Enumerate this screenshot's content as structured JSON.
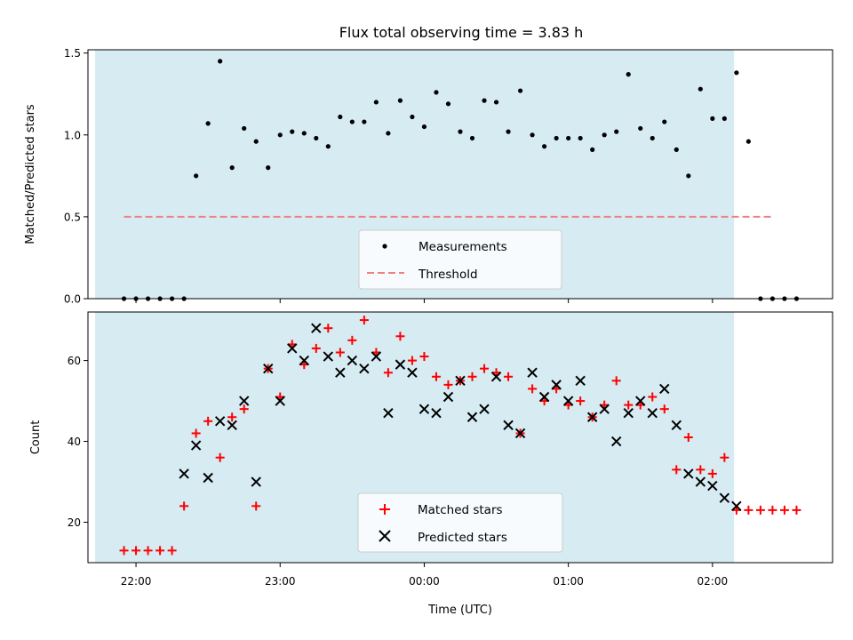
{
  "chart_data": [
    {
      "type": "scatter",
      "title": "Flux total observing time = 3.83 h",
      "ylabel": "Matched/Predicted stars",
      "ylim": [
        0,
        1.52
      ],
      "yticks": [
        "0.0",
        "0.5",
        "1.0",
        "1.5"
      ],
      "ytick_values": [
        0,
        0.5,
        1.0,
        1.5
      ],
      "shaded_span": [
        "21:43",
        "02:09"
      ],
      "shade_color": "#add8e6",
      "legend_position": "bottom-center",
      "series": [
        {
          "name": "Measurements",
          "kind": "scatter",
          "marker": "dot",
          "color": "#000000",
          "x": [
            "21:55",
            "22:00",
            "22:05",
            "22:10",
            "22:15",
            "22:20",
            "22:25",
            "22:30",
            "22:35",
            "22:40",
            "22:45",
            "22:50",
            "22:55",
            "23:00",
            "23:05",
            "23:10",
            "23:15",
            "23:20",
            "23:25",
            "23:30",
            "23:35",
            "23:40",
            "23:45",
            "23:50",
            "23:55",
            "00:00",
            "00:05",
            "00:10",
            "00:15",
            "00:20",
            "00:25",
            "00:30",
            "00:35",
            "00:40",
            "00:45",
            "00:50",
            "00:55",
            "01:00",
            "01:05",
            "01:10",
            "01:15",
            "01:20",
            "01:25",
            "01:30",
            "01:35",
            "01:40",
            "01:45",
            "01:50",
            "01:55",
            "02:00",
            "02:05",
            "02:10",
            "02:15",
            "02:20",
            "02:25",
            "02:30",
            "02:35"
          ],
          "y": [
            0,
            0,
            0,
            0,
            0,
            0,
            0.75,
            1.07,
            1.45,
            0.8,
            1.04,
            0.96,
            0.8,
            1.0,
            1.02,
            1.01,
            0.98,
            0.93,
            1.11,
            1.08,
            1.08,
            1.2,
            1.01,
            1.21,
            1.11,
            1.05,
            1.26,
            1.19,
            1.02,
            0.98,
            1.21,
            1.2,
            1.02,
            1.27,
            1.0,
            0.93,
            0.98,
            0.98,
            0.98,
            0.91,
            1.0,
            1.02,
            1.37,
            1.04,
            0.98,
            1.08,
            0.91,
            0.75,
            1.28,
            1.1,
            1.1,
            1.38,
            0.96,
            0,
            0,
            0,
            0
          ]
        },
        {
          "name": "Threshold",
          "kind": "line",
          "style": "dashed",
          "color": "#f08080",
          "x": [
            "21:55",
            "02:25"
          ],
          "y": [
            0.5,
            0.5
          ]
        }
      ]
    },
    {
      "type": "scatter",
      "xlabel": "Time (UTC)",
      "ylabel": "Count",
      "ylim": [
        10,
        72
      ],
      "yticks": [
        "20",
        "40",
        "60"
      ],
      "ytick_values": [
        20,
        40,
        60
      ],
      "xticks": [
        "22:00",
        "23:00",
        "00:00",
        "01:00",
        "02:00"
      ],
      "xlim": [
        "21:40",
        "02:50"
      ],
      "shaded_span": [
        "21:43",
        "02:09"
      ],
      "shade_color": "#add8e6",
      "legend_position": "bottom-center",
      "series": [
        {
          "name": "Matched stars",
          "kind": "scatter",
          "marker": "plus",
          "color": "#ff0000",
          "x": [
            "21:55",
            "22:00",
            "22:05",
            "22:10",
            "22:15",
            "22:20",
            "22:25",
            "22:30",
            "22:35",
            "22:40",
            "22:45",
            "22:50",
            "22:55",
            "23:00",
            "23:05",
            "23:10",
            "23:15",
            "23:20",
            "23:25",
            "23:30",
            "23:35",
            "23:40",
            "23:45",
            "23:50",
            "23:55",
            "00:00",
            "00:05",
            "00:10",
            "00:15",
            "00:20",
            "00:25",
            "00:30",
            "00:35",
            "00:40",
            "00:45",
            "00:50",
            "00:55",
            "01:00",
            "01:05",
            "01:10",
            "01:15",
            "01:20",
            "01:25",
            "01:30",
            "01:35",
            "01:40",
            "01:45",
            "01:50",
            "01:55",
            "02:00",
            "02:05",
            "02:10",
            "02:15",
            "02:20",
            "02:25",
            "02:30",
            "02:35"
          ],
          "y": [
            13,
            13,
            13,
            13,
            13,
            24,
            42,
            45,
            36,
            46,
            48,
            24,
            58,
            51,
            64,
            59,
            63,
            68,
            62,
            65,
            70,
            62,
            57,
            66,
            60,
            61,
            56,
            54,
            55,
            56,
            58,
            57,
            56,
            42,
            53,
            50,
            53,
            49,
            50,
            46,
            49,
            55,
            49,
            49,
            51,
            48,
            33,
            41,
            33,
            32,
            36,
            23,
            23,
            23,
            23,
            23,
            23
          ]
        },
        {
          "name": "Predicted stars",
          "kind": "scatter",
          "marker": "x",
          "color": "#000000",
          "x": [
            "22:20",
            "22:25",
            "22:30",
            "22:35",
            "22:40",
            "22:45",
            "22:50",
            "22:55",
            "23:00",
            "23:05",
            "23:10",
            "23:15",
            "23:20",
            "23:25",
            "23:30",
            "23:35",
            "23:40",
            "23:45",
            "23:50",
            "23:55",
            "00:00",
            "00:05",
            "00:10",
            "00:15",
            "00:20",
            "00:25",
            "00:30",
            "00:35",
            "00:40",
            "00:45",
            "00:50",
            "00:55",
            "01:00",
            "01:05",
            "01:10",
            "01:15",
            "01:20",
            "01:25",
            "01:30",
            "01:35",
            "01:40",
            "01:45",
            "01:50",
            "01:55",
            "02:00",
            "02:05",
            "02:10"
          ],
          "y": [
            32,
            39,
            31,
            45,
            44,
            50,
            30,
            58,
            50,
            63,
            60,
            68,
            61,
            57,
            60,
            58,
            61,
            47,
            59,
            57,
            48,
            47,
            51,
            55,
            46,
            48,
            56,
            44,
            42,
            57,
            51,
            54,
            50,
            55,
            46,
            48,
            40,
            47,
            50,
            47,
            53,
            44,
            32,
            30,
            29,
            26,
            24
          ]
        }
      ]
    }
  ]
}
